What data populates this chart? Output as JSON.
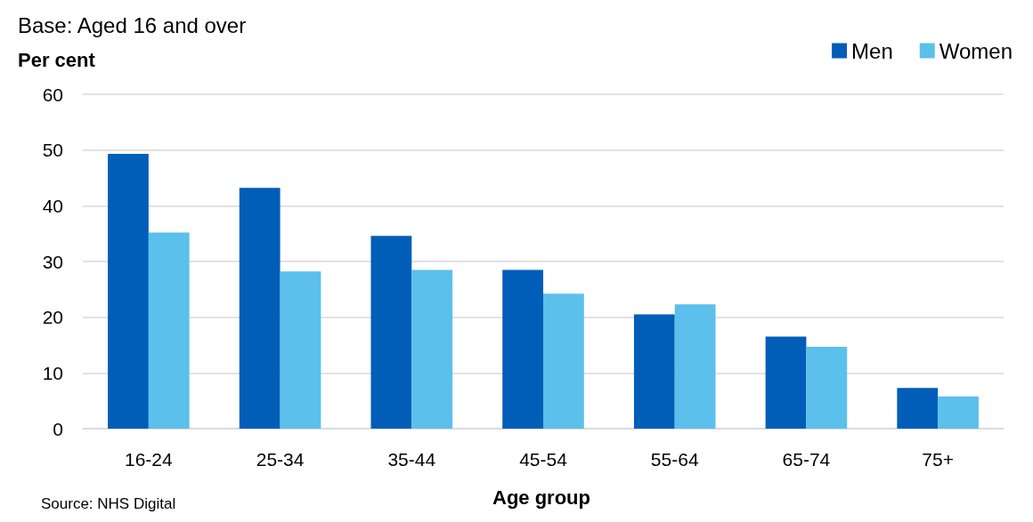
{
  "chart_data": {
    "type": "bar",
    "title": "Base: Aged 16 and over",
    "ylabel": "Per cent",
    "xlabel": "Age group",
    "categories": [
      "16-24",
      "25-34",
      "35-44",
      "45-54",
      "55-64",
      "65-74",
      "75+"
    ],
    "series": [
      {
        "name": "Men",
        "color": "#005eb8",
        "values": [
          49.3,
          43.2,
          34.6,
          28.5,
          20.5,
          16.5,
          7.3
        ]
      },
      {
        "name": "Women",
        "color": "#5bc0eb",
        "values": [
          35.2,
          28.2,
          28.5,
          24.2,
          22.3,
          14.7,
          5.8
        ]
      }
    ],
    "ylim": [
      0,
      60
    ],
    "yticks": [
      0,
      10,
      20,
      30,
      40,
      50,
      60
    ],
    "grid": "y",
    "legend": "top right",
    "annotations": [
      "Source: NHS Digital"
    ]
  }
}
